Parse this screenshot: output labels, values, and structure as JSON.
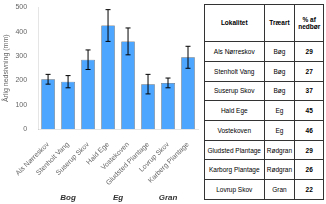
{
  "chart_data": {
    "type": "bar",
    "ylabel": "Årlig nedsivning (mm)",
    "categories": [
      "Als Nørreskov",
      "Stenholt Vang",
      "Suserup Skov",
      "Hald Ege",
      "Vostekoven",
      "Gludsted Plantage",
      "Lovrup Skov",
      "Karberg Plantage"
    ],
    "values": [
      205,
      195,
      285,
      425,
      360,
      185,
      190,
      295
    ],
    "errors": [
      20,
      25,
      40,
      65,
      55,
      40,
      20,
      45
    ],
    "groups": [
      "Bog",
      "Eg",
      "Gran"
    ],
    "group_sizes": [
      3,
      2,
      3
    ],
    "color": "#4da6ff",
    "ylim": [
      0,
      500
    ],
    "yticks": [
      0,
      100,
      200,
      300,
      400,
      500
    ],
    "grid": false,
    "table": {
      "headers": [
        "Lokalitet",
        "Træart",
        "% af nedbør"
      ],
      "rows": [
        [
          "Als Nørreskov",
          "Bøg",
          "29"
        ],
        [
          "Stenholt Vang",
          "Bøg",
          "27"
        ],
        [
          "Suserup Skov",
          "Bøg",
          "37"
        ],
        [
          "Hald Ege",
          "Eg",
          "45"
        ],
        [
          "Vostekoven",
          "Eg",
          "46"
        ],
        [
          "Gludsted Plantage",
          "Rødgran",
          "29"
        ],
        [
          "Karborg Plantage",
          "Rødgran",
          "26"
        ],
        [
          "Lovrup Skov",
          "Gran",
          "22"
        ]
      ]
    }
  }
}
